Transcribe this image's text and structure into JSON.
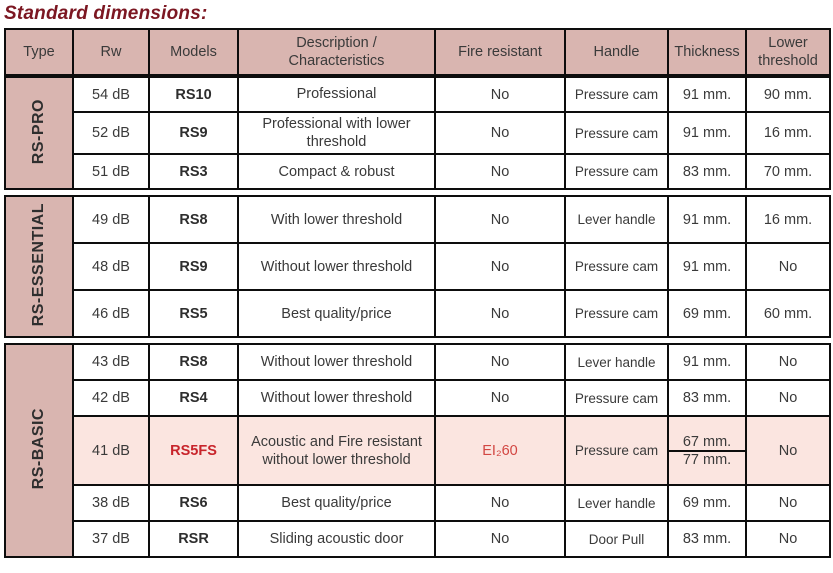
{
  "title": "Standard dimensions:",
  "colors": {
    "title_red": "#7c1722",
    "header_bg": "#d9b5b0",
    "highlight_row_bg": "#fbe5e0",
    "model_red": "#c8242b",
    "fire_rating_red": "#d24642",
    "border": "#0d0d0d",
    "text": "#3a3a3a"
  },
  "columns": [
    "Type",
    "Rw",
    "Models",
    "Description /\nCharacteristics",
    "Fire resistant",
    "Handle",
    "Thickness",
    "Lower\nthreshold"
  ],
  "sections": [
    {
      "type": "RS-PRO",
      "rows": [
        {
          "rw": "54 dB",
          "model": "RS10",
          "description": "Professional",
          "fire": "No",
          "handle": "Pressure cam",
          "thickness": [
            "91 mm."
          ],
          "lower": "90 mm."
        },
        {
          "rw": "52 dB",
          "model": "RS9",
          "description": "Professional with lower threshold",
          "fire": "No",
          "handle": "Pressure cam",
          "thickness": [
            "91 mm."
          ],
          "lower": "16 mm."
        },
        {
          "rw": "51 dB",
          "model": "RS3",
          "description": "Compact & robust",
          "fire": "No",
          "handle": "Pressure cam",
          "thickness": [
            "83 mm."
          ],
          "lower": "70 mm."
        }
      ]
    },
    {
      "type": "RS-ESSENTIAL",
      "rows": [
        {
          "rw": "49 dB",
          "model": "RS8",
          "description": "With lower threshold",
          "fire": "No",
          "handle": "Lever handle",
          "thickness": [
            "91 mm."
          ],
          "lower": "16 mm."
        },
        {
          "rw": "48 dB",
          "model": "RS9",
          "description": "Without lower threshold",
          "fire": "No",
          "handle": "Pressure cam",
          "thickness": [
            "91 mm."
          ],
          "lower": "No"
        },
        {
          "rw": "46 dB",
          "model": "RS5",
          "description": "Best quality/price",
          "fire": "No",
          "handle": "Pressure cam",
          "thickness": [
            "69 mm."
          ],
          "lower": "60 mm."
        }
      ]
    },
    {
      "type": "RS-BASIC",
      "rows": [
        {
          "rw": "43 dB",
          "model": "RS8",
          "description": "Without lower threshold",
          "fire": "No",
          "handle": "Lever handle",
          "thickness": [
            "91 mm."
          ],
          "lower": "No"
        },
        {
          "rw": "42 dB",
          "model": "RS4",
          "description": "Without lower threshold",
          "fire": "No",
          "handle": "Pressure cam",
          "thickness": [
            "83 mm."
          ],
          "lower": "No"
        },
        {
          "rw": "41 dB",
          "model": "RS5FS",
          "description": "Acoustic and Fire resistant without lower threshold",
          "fire": "EI₂60",
          "handle": "Pressure cam",
          "thickness": [
            "67 mm.",
            "77 mm."
          ],
          "lower": "No",
          "highlight": true
        },
        {
          "rw": "38 dB",
          "model": "RS6",
          "description": "Best quality/price",
          "fire": "No",
          "handle": "Lever handle",
          "thickness": [
            "69 mm."
          ],
          "lower": "No"
        },
        {
          "rw": "37 dB",
          "model": "RSR",
          "description": "Sliding acoustic door",
          "fire": "No",
          "handle": "Door Pull",
          "thickness": [
            "83 mm."
          ],
          "lower": "No"
        }
      ]
    }
  ]
}
